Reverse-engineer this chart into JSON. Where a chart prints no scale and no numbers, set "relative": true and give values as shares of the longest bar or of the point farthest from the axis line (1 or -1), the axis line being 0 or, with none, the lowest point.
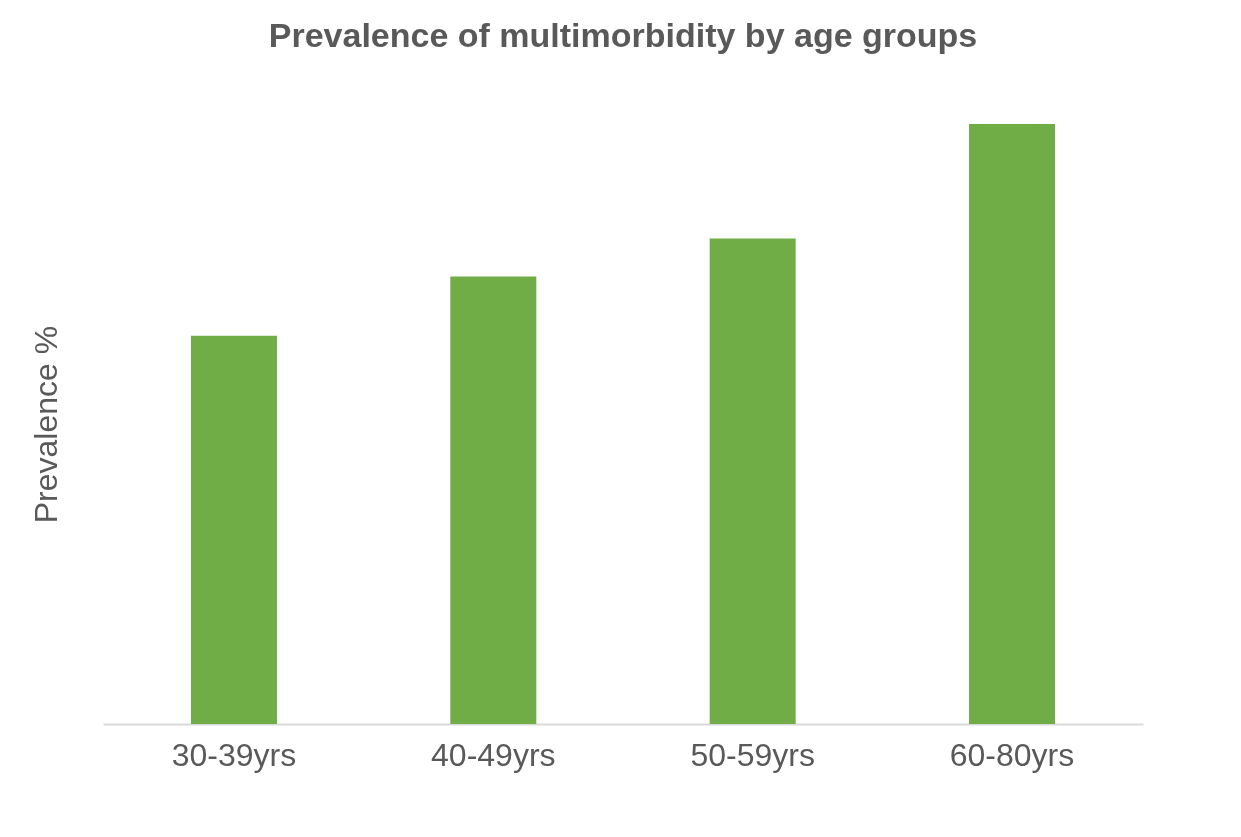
{
  "chart_data": {
    "type": "bar",
    "title": "Prevalence of multimorbidity by age groups",
    "ylabel": "Prevalence %",
    "categories": [
      "30-39yrs",
      "40-49yrs",
      "50-59yrs",
      "60-80yrs"
    ],
    "values": [
      0.647,
      0.746,
      0.809,
      1.0
    ],
    "color": "#70ad47",
    "relative": true,
    "grid": false
  }
}
